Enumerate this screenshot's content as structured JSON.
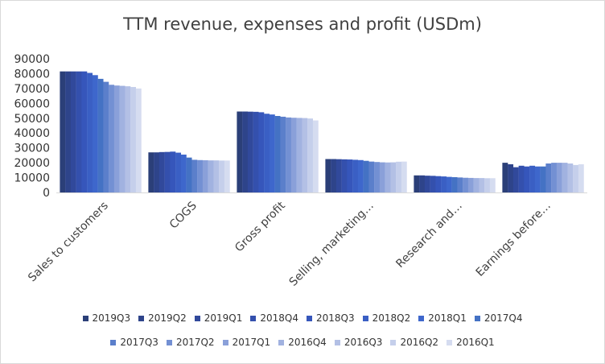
{
  "chart_data": {
    "type": "bar",
    "title": "TTM revenue, expenses and profit (USDm)",
    "xlabel": "",
    "ylabel": "",
    "ylim": [
      0,
      90000
    ],
    "yticks": [
      "0",
      "10000",
      "20000",
      "30000",
      "40000",
      "50000",
      "60000",
      "70000",
      "80000",
      "90000"
    ],
    "categories": [
      "Sales to customers",
      "COGS",
      "Gross profit",
      "Selling, marketing…",
      "Research and…",
      "Earnings before…"
    ],
    "legend_position": "bottom",
    "grid": false,
    "series": [
      {
        "name": "2019Q3",
        "color": "#2b3f78",
        "values": [
          81500,
          27000,
          54500,
          22500,
          11500,
          20000
        ]
      },
      {
        "name": "2019Q2",
        "color": "#2e448a",
        "values": [
          81500,
          27000,
          54500,
          22500,
          11500,
          19000
        ]
      },
      {
        "name": "2019Q1",
        "color": "#31499b",
        "values": [
          81500,
          27200,
          54400,
          22400,
          11300,
          17000
        ]
      },
      {
        "name": "2018Q4",
        "color": "#3450ad",
        "values": [
          81500,
          27300,
          54300,
          22300,
          11200,
          18000
        ]
      },
      {
        "name": "2018Q3",
        "color": "#3656bb",
        "values": [
          81500,
          27500,
          54000,
          22200,
          11000,
          17500
        ]
      },
      {
        "name": "2018Q2",
        "color": "#3a5fc4",
        "values": [
          80500,
          26800,
          53000,
          22000,
          10800,
          18000
        ]
      },
      {
        "name": "2018Q1",
        "color": "#3e67cc",
        "values": [
          79000,
          25500,
          52500,
          21800,
          10500,
          17500
        ]
      },
      {
        "name": "2017Q4",
        "color": "#4472c4",
        "values": [
          76500,
          23500,
          51500,
          21300,
          10300,
          17500
        ]
      },
      {
        "name": "2017Q3",
        "color": "#5b7fcb",
        "values": [
          74500,
          22000,
          51000,
          20800,
          10100,
          19500
        ]
      },
      {
        "name": "2017Q2",
        "color": "#7390d3",
        "values": [
          72500,
          21800,
          50500,
          20500,
          9900,
          20000
        ]
      },
      {
        "name": "2017Q1",
        "color": "#8aa0d9",
        "values": [
          72000,
          21700,
          50300,
          20300,
          9800,
          20000
        ]
      },
      {
        "name": "2016Q4",
        "color": "#a1b2e0",
        "values": [
          71800,
          21600,
          50200,
          20200,
          9700,
          20000
        ]
      },
      {
        "name": "2016Q3",
        "color": "#b3c0e5",
        "values": [
          71500,
          21600,
          50100,
          20300,
          9700,
          19500
        ]
      },
      {
        "name": "2016Q2",
        "color": "#c5cfeb",
        "values": [
          71000,
          21500,
          49800,
          20700,
          9600,
          18500
        ]
      },
      {
        "name": "2016Q1",
        "color": "#d5dcf0",
        "values": [
          70000,
          21500,
          48500,
          20800,
          9600,
          19000
        ]
      }
    ]
  }
}
